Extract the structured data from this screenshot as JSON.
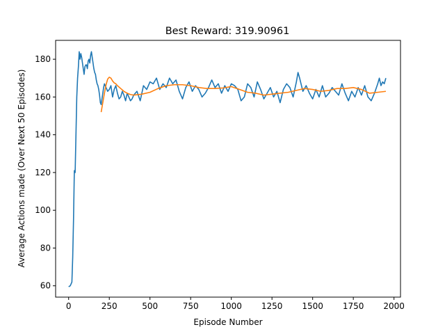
{
  "chart_data": {
    "type": "line",
    "title": "Best Reward:  319.90961",
    "xlabel": "Episode Number",
    "ylabel": "Average Actions made (Over Next 50 Episodes)",
    "xlim": [
      -80,
      2040
    ],
    "ylim": [
      54,
      190
    ],
    "xticks": [
      0,
      250,
      500,
      750,
      1000,
      1250,
      1500,
      1750,
      2000
    ],
    "yticks": [
      60,
      80,
      100,
      120,
      140,
      160,
      180
    ],
    "grid": false,
    "series": [
      {
        "color": "#1f77b4",
        "x": [
          0,
          10,
          20,
          25,
          30,
          35,
          40,
          45,
          50,
          55,
          60,
          65,
          70,
          75,
          80,
          85,
          90,
          95,
          100,
          105,
          110,
          115,
          120,
          125,
          130,
          135,
          140,
          145,
          150,
          155,
          160,
          165,
          170,
          175,
          180,
          185,
          190,
          195,
          200,
          205,
          210,
          215,
          220,
          230,
          240,
          250,
          260,
          270,
          280,
          290,
          300,
          310,
          320,
          330,
          340,
          350,
          360,
          370,
          380,
          390,
          400,
          420,
          440,
          460,
          480,
          500,
          520,
          540,
          560,
          580,
          600,
          620,
          640,
          660,
          680,
          700,
          720,
          740,
          760,
          780,
          800,
          820,
          840,
          860,
          880,
          900,
          920,
          940,
          960,
          980,
          1000,
          1020,
          1040,
          1060,
          1080,
          1100,
          1120,
          1140,
          1160,
          1180,
          1200,
          1220,
          1240,
          1260,
          1280,
          1300,
          1320,
          1340,
          1360,
          1380,
          1400,
          1410,
          1420,
          1440,
          1460,
          1480,
          1500,
          1520,
          1540,
          1560,
          1580,
          1600,
          1620,
          1640,
          1660,
          1680,
          1700,
          1720,
          1740,
          1760,
          1780,
          1800,
          1820,
          1840,
          1860,
          1880,
          1900,
          1910,
          1920,
          1930,
          1940,
          1950
        ],
        "y": [
          59.5,
          60,
          62,
          75,
          95,
          121,
          120,
          140,
          160,
          170,
          176,
          184,
          180,
          183,
          181,
          178,
          175,
          172,
          176,
          177,
          177,
          175,
          179,
          180,
          178,
          182,
          184,
          181,
          178,
          175,
          173,
          172,
          169,
          167,
          166,
          164,
          161,
          157,
          156,
          159,
          162,
          165,
          167,
          165,
          163,
          164,
          166,
          160,
          164,
          166,
          162,
          159,
          160,
          163,
          161,
          158,
          162,
          160,
          158,
          159,
          161,
          163,
          158,
          166,
          164,
          168,
          167,
          170,
          164,
          167,
          165,
          170,
          167,
          169,
          163,
          159,
          165,
          168,
          163,
          166,
          164,
          160,
          162,
          165,
          169,
          165,
          167,
          162,
          166,
          163,
          167,
          166,
          164,
          158,
          160,
          167,
          165,
          160,
          168,
          164,
          159,
          162,
          165,
          160,
          163,
          157,
          164,
          167,
          165,
          160,
          168,
          173,
          170,
          163,
          166,
          162,
          159,
          164,
          160,
          166,
          160,
          162,
          165,
          163,
          161,
          167,
          162,
          158,
          163,
          160,
          165,
          161,
          166,
          160,
          158,
          162,
          167,
          170,
          166,
          168,
          167,
          170
        ]
      },
      {
        "color": "#ff7f0e",
        "x": [
          200,
          210,
          220,
          230,
          240,
          250,
          260,
          270,
          280,
          290,
          300,
          320,
          340,
          360,
          380,
          400,
          450,
          500,
          550,
          600,
          650,
          700,
          750,
          800,
          850,
          900,
          950,
          1000,
          1050,
          1100,
          1150,
          1200,
          1250,
          1300,
          1350,
          1400,
          1450,
          1500,
          1550,
          1600,
          1650,
          1700,
          1750,
          1800,
          1850,
          1900,
          1950
        ],
        "y": [
          152,
          157,
          162,
          166.5,
          169.5,
          170.5,
          170,
          168.5,
          167.5,
          167,
          166,
          164.5,
          163,
          162,
          161.3,
          161,
          161.5,
          162.5,
          164.5,
          166,
          166.5,
          166.5,
          166,
          165,
          164.5,
          164.5,
          164.8,
          165.5,
          164,
          162.5,
          162,
          161,
          161.5,
          162,
          162.5,
          163.5,
          164.5,
          164,
          163,
          163.5,
          164.5,
          164.5,
          165,
          164,
          162,
          162.5,
          163
        ]
      }
    ]
  }
}
